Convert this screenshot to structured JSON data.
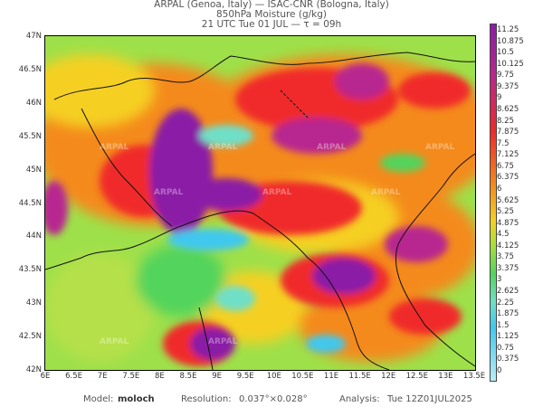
{
  "header": {
    "line1": "ARPAL (Genoa, Italy)  —  ISAC-CNR (Bologna, Italy)",
    "line2": "850hPa Moisture (g/kg)",
    "line3": "21 UTC Tue 01 JUL  —  τ = 09h"
  },
  "axes": {
    "lat_labels": [
      "47N",
      "46.5N",
      "46N",
      "45.5N",
      "45N",
      "44.5N",
      "44N",
      "43.5N",
      "43N",
      "42.5N",
      "42N"
    ],
    "lon_labels": [
      "6E",
      "6.5E",
      "7E",
      "7.5E",
      "8E",
      "8.5E",
      "9E",
      "9.5E",
      "10E",
      "10.5E",
      "11E",
      "11.5E",
      "12E",
      "12.5E",
      "13E",
      "13.5E"
    ]
  },
  "colorbar": {
    "labels": [
      "11.25",
      "10.875",
      "10.5",
      "10.125",
      "9.75",
      "9.375",
      "9",
      "8.625",
      "8.25",
      "7.875",
      "7.5",
      "7.125",
      "6.75",
      "6.375",
      "6",
      "5.625",
      "5.25",
      "4.875",
      "4.5",
      "4.125",
      "3.75",
      "3.375",
      "3",
      "2.625",
      "2.25",
      "1.875",
      "1.5",
      "1.125",
      "0.75",
      "0.375",
      "0"
    ]
  },
  "watermark": "ARPAL",
  "footer": {
    "model_label": "Model:",
    "model_value": "moloch",
    "resolution_label": "Resolution:",
    "resolution_value": "0.037°×0.028°",
    "analysis_label": "Analysis:",
    "analysis_value": "Tue 12Z01JUL2025"
  },
  "colors": {
    "purple": "#8a1ca6",
    "magenta": "#b8268f",
    "red": "#f02a2a",
    "orange": "#f48a1c",
    "yellow": "#f5d020",
    "lightgreen": "#a8e03a",
    "green": "#52d45c",
    "aqua": "#6fdfc8",
    "cyan": "#3fc8ef"
  }
}
